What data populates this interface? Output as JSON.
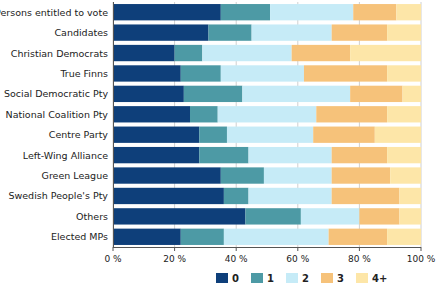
{
  "chart_data": {
    "type": "bar",
    "orientation": "horizontal",
    "stacked": true,
    "grid": true,
    "legend": "bottom",
    "categories": [
      "Persons entitled to vote",
      "Candidates",
      "Christian Democrats",
      "True Finns",
      "Social Democratic Pty",
      "National Coalition Pty",
      "Centre Party",
      "Left-Wing Alliance",
      "Green League",
      "Swedish People's Pty",
      "Others",
      "Elected MPs"
    ],
    "series": [
      {
        "name": "0",
        "color": "#0e3f7a",
        "values": [
          35,
          31,
          20,
          22,
          23,
          25,
          28,
          28,
          35,
          36,
          43,
          22
        ]
      },
      {
        "name": "1",
        "color": "#4d9aa5",
        "values": [
          16,
          14,
          9,
          13,
          19,
          9,
          9,
          16,
          14,
          8,
          18,
          14
        ]
      },
      {
        "name": "2",
        "color": "#c6ebf7",
        "values": [
          27,
          26,
          29,
          27,
          35,
          32,
          28,
          27,
          22,
          27,
          19,
          34
        ]
      },
      {
        "name": "3",
        "color": "#f6c27a",
        "values": [
          14,
          18,
          19,
          27,
          17,
          23,
          20,
          18,
          19,
          22,
          13,
          19
        ]
      },
      {
        "name": "4+",
        "color": "#fde6a8",
        "values": [
          8,
          11,
          23,
          11,
          6,
          11,
          15,
          11,
          10,
          7,
          7,
          11
        ]
      }
    ],
    "xlim": [
      0,
      100
    ],
    "xticks": [
      {
        "value": 0,
        "label": "0 %"
      },
      {
        "value": 20,
        "label": "20 %"
      },
      {
        "value": 40,
        "label": "40 %"
      },
      {
        "value": 60,
        "label": "60 %"
      },
      {
        "value": 80,
        "label": "80 %"
      },
      {
        "value": 100,
        "label": "100 %"
      }
    ]
  }
}
